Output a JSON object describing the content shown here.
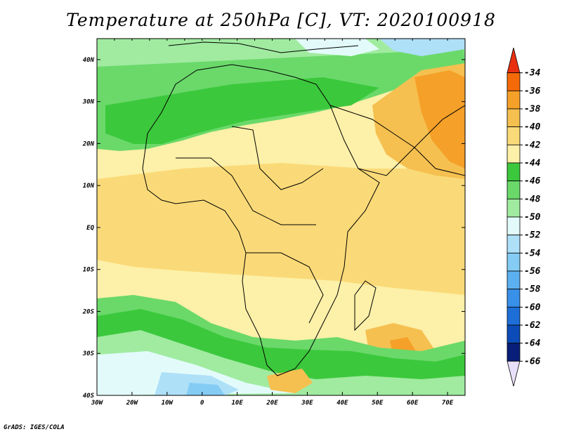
{
  "title": "Temperature at 250hPa [C], VT: 2020100918",
  "credit": "GrADS: IGES/COLA",
  "map": {
    "lon_labels": [
      "30W",
      "20W",
      "10W",
      "0",
      "10E",
      "20E",
      "30E",
      "40E",
      "50E",
      "60E",
      "70E"
    ],
    "lat_labels": [
      "40N",
      "30N",
      "20N",
      "10N",
      "EQ",
      "10S",
      "20S",
      "30S",
      "40S"
    ]
  },
  "colorbar": {
    "labels": [
      "-34",
      "-36",
      "-38",
      "-40",
      "-42",
      "-44",
      "-46",
      "-48",
      "-50",
      "-52",
      "-54",
      "-56",
      "-58",
      "-60",
      "-62",
      "-64",
      "-66"
    ],
    "colors": [
      "#e83010",
      "#f56a08",
      "#f5a028",
      "#f5c050",
      "#fada78",
      "#fdf0a8",
      "#3cc83c",
      "#6ad96a",
      "#a0eba0",
      "#e2fbfa",
      "#aee0f8",
      "#84ccf4",
      "#5cb0f0",
      "#3890e8",
      "#1e6ed8",
      "#0c4cb8",
      "#081e78",
      "#e8e0fa"
    ]
  }
}
